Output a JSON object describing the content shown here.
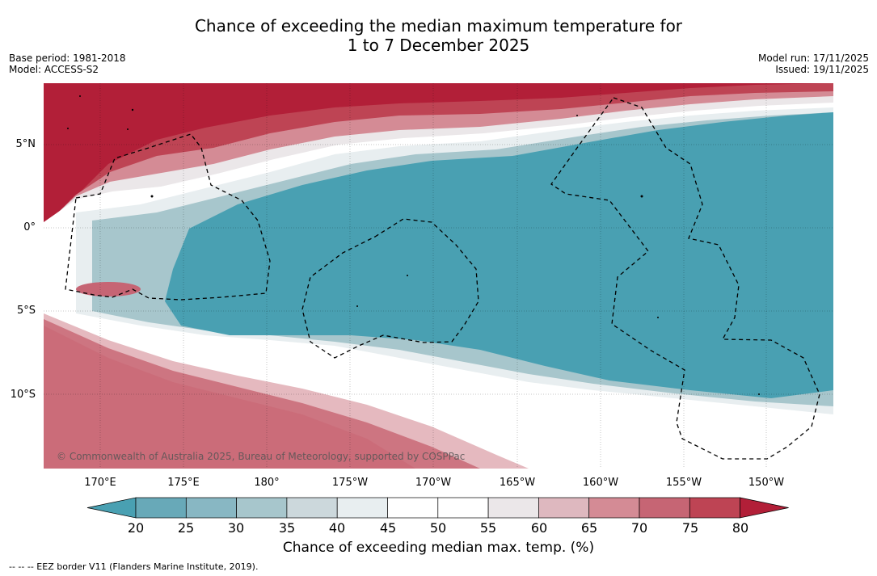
{
  "header": {
    "title_line1": "Chance of exceeding the median maximum temperature for",
    "title_line2": "1 to 7 December 2025",
    "base_period": "Base period: 1981-2018",
    "model": "Model: ACCESS-S2",
    "model_run": "Model run: 17/11/2025",
    "issued": "Issued: 19/11/2025"
  },
  "map": {
    "copyright": "© Commonwealth of Australia 2025, Bureau of Meteorology, supported by COSPPac",
    "lat_ticks": [
      "5°N",
      "0°",
      "5°S",
      "10°S"
    ],
    "lon_ticks": [
      "170°E",
      "175°E",
      "180°",
      "175°W",
      "170°W",
      "165°W",
      "160°W",
      "155°W",
      "150°W"
    ]
  },
  "colorbar": {
    "ticks": [
      "20",
      "25",
      "30",
      "35",
      "40",
      "45",
      "50",
      "55",
      "60",
      "65",
      "70",
      "75",
      "80"
    ],
    "label": "Chance of exceeding median max. temp. (%)",
    "colors": {
      "lt20": "#49a0b2",
      "b20_25": "#68a9b8",
      "b25_30": "#88b7c3",
      "b30_35": "#a7c6cc",
      "b35_40": "#ccd8dc",
      "b40_45": "#e8eef0",
      "b45_55": "#ffffff",
      "b55_60": "#ebe7e9",
      "b60_65": "#deb8bf",
      "b65_70": "#d48b95",
      "b70_75": "#c66574",
      "b75_80": "#be4454",
      "gt80": "#b21f38"
    }
  },
  "footer": {
    "eez_note": "--  --  -- EEZ border V11 (Flanders Marine Institute, 2019)."
  }
}
